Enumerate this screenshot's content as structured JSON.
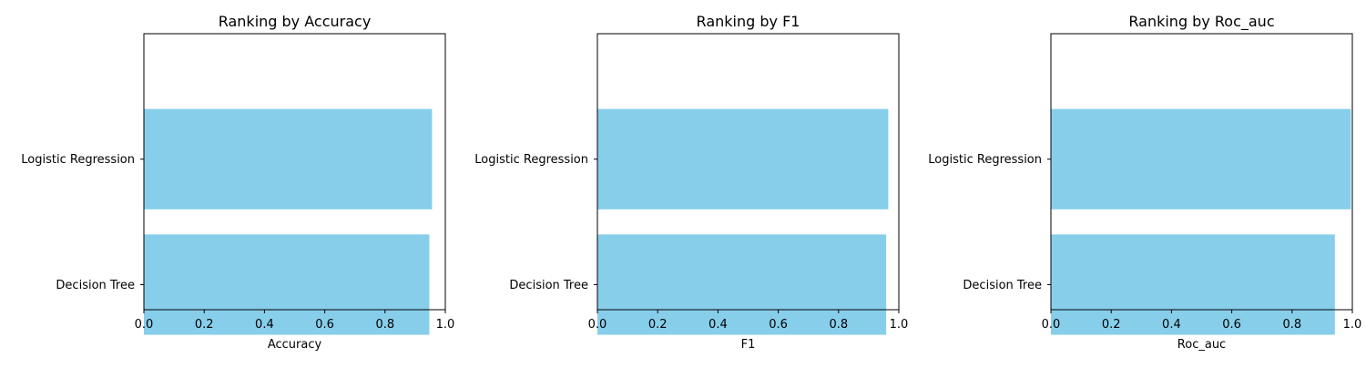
{
  "chart_data": [
    {
      "type": "bar",
      "orientation": "horizontal",
      "title": "Ranking by Accuracy",
      "xlabel": "Accuracy",
      "ylabel": "",
      "categories": [
        "Logistic Regression",
        "Decision Tree"
      ],
      "values": [
        0.956,
        0.947
      ],
      "xlim": [
        0,
        1.0
      ],
      "xticks": [
        "0.0",
        "0.2",
        "0.4",
        "0.6",
        "0.8",
        "1.0"
      ],
      "bar_color": "#87CEEB",
      "grid": false
    },
    {
      "type": "bar",
      "orientation": "horizontal",
      "title": "Ranking by F1",
      "xlabel": "F1",
      "ylabel": "",
      "categories": [
        "Logistic Regression",
        "Decision Tree"
      ],
      "values": [
        0.965,
        0.958
      ],
      "xlim": [
        0,
        1.0
      ],
      "xticks": [
        "0.0",
        "0.2",
        "0.4",
        "0.6",
        "0.8",
        "1.0"
      ],
      "bar_color": "#87CEEB",
      "grid": false
    },
    {
      "type": "bar",
      "orientation": "horizontal",
      "title": "Ranking by Roc_auc",
      "xlabel": "Roc_auc",
      "ylabel": "",
      "categories": [
        "Logistic Regression",
        "Decision Tree"
      ],
      "values": [
        0.995,
        0.942
      ],
      "xlim": [
        0,
        1.0
      ],
      "xticks": [
        "0.0",
        "0.2",
        "0.4",
        "0.6",
        "0.8",
        "1.0"
      ],
      "bar_color": "#87CEEB",
      "grid": false
    }
  ]
}
